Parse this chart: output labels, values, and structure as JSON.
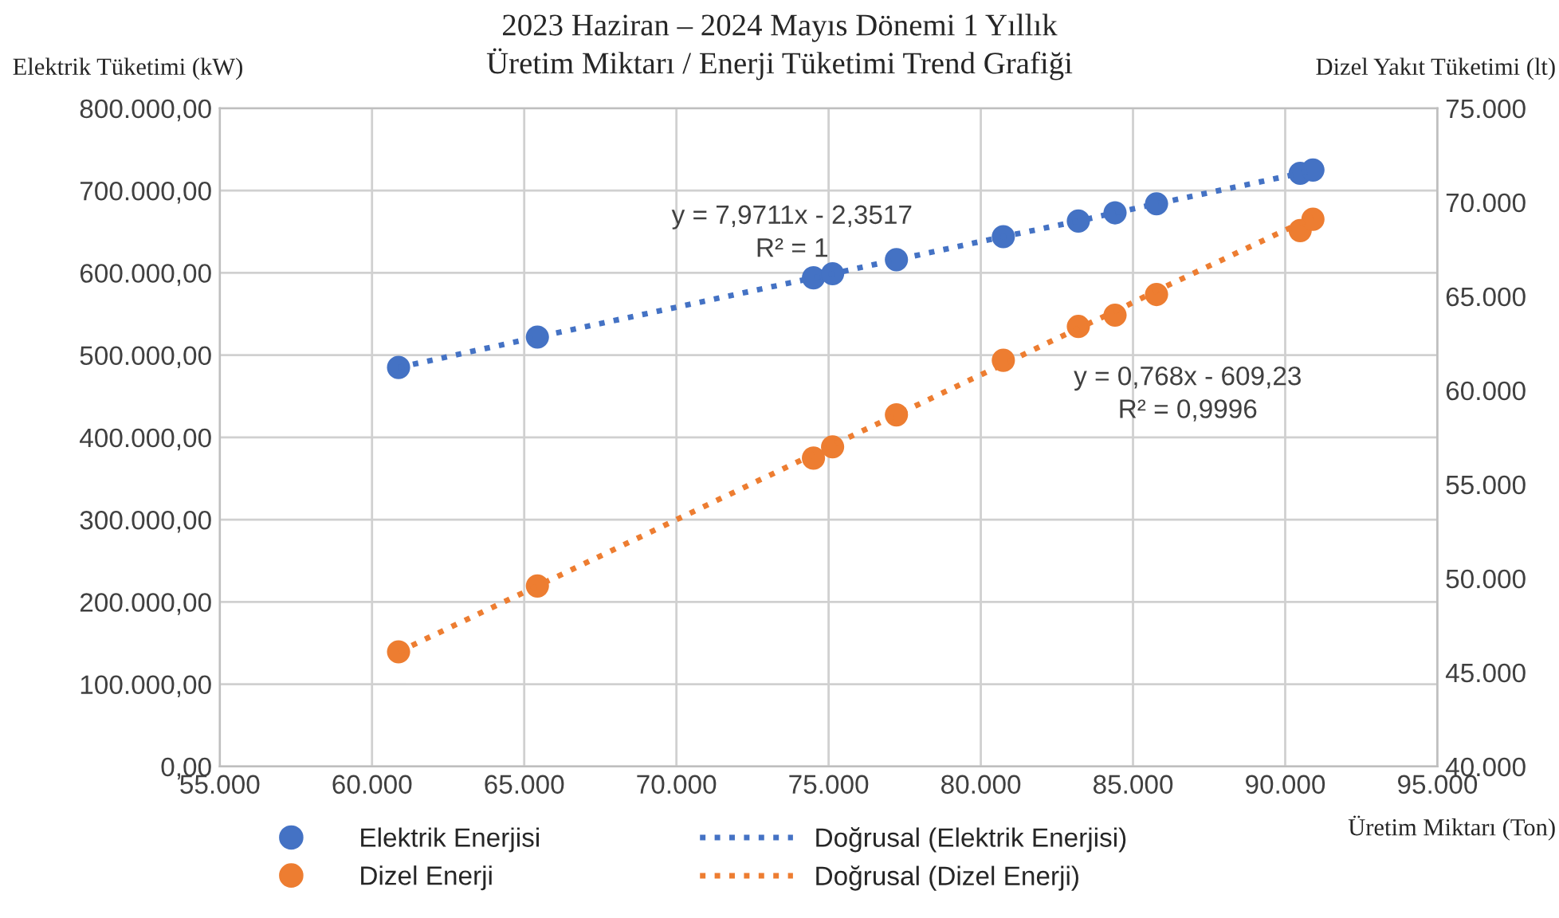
{
  "chart_data": {
    "type": "scatter",
    "title": "2023 Haziran – 2024 Mayıs Dönemi 1 Yıllık\nÜretim Miktarı / Enerji Tüketimi Trend Grafiği",
    "xlabel": "Üretim Miktarı (Ton)",
    "ylabel": "Elektrik Tüketimi (kW)",
    "y2label": "Dizel Yakıt Tüketimi (lt)",
    "x": [
      60872,
      65433,
      74502,
      75131,
      77228,
      80740,
      83205,
      84410,
      85773,
      90492,
      90911
    ],
    "series": [
      {
        "name": "Elektrik Enerjisi",
        "color": "#4472c4",
        "marker": "circle",
        "values": [
          485000,
          522000,
          594000,
          599000,
          616000,
          644000,
          663000,
          673000,
          684000,
          721000,
          725000
        ]
      },
      {
        "name": "Dizel Enerji",
        "axis": "y2",
        "color": "#ed7d31",
        "marker": "circle",
        "values": [
          46100,
          49600,
          56400,
          57000,
          58700,
          61600,
          63400,
          64000,
          65100,
          68500,
          69100
        ]
      },
      {
        "name": "Doğrusal (Elektrik Enerjisi)",
        "type": "line",
        "color": "#4472c4",
        "line_style": "dotted",
        "values": [
          485000,
          522000,
          594000,
          599000,
          616000,
          644000,
          663000,
          673000,
          684000,
          721000,
          725000
        ]
      },
      {
        "name": "Doğrusal (Dizel Enerji)",
        "type": "line",
        "axis": "y2",
        "color": "#ed7d31",
        "line_style": "dotted",
        "values": [
          46100,
          49600,
          56600,
          57100,
          58700,
          61400,
          63300,
          64200,
          65300,
          68900,
          69200
        ]
      }
    ],
    "xlim": [
      55000,
      95000
    ],
    "xticks": [
      {
        "value": 55000,
        "label": "55.000"
      },
      {
        "value": 60000,
        "label": "60.000"
      },
      {
        "value": 65000,
        "label": "65.000"
      },
      {
        "value": 70000,
        "label": "70.000"
      },
      {
        "value": 75000,
        "label": "75.000"
      },
      {
        "value": 80000,
        "label": "80.000"
      },
      {
        "value": 85000,
        "label": "85.000"
      },
      {
        "value": 90000,
        "label": "90.000"
      },
      {
        "value": 95000,
        "label": "95.000"
      }
    ],
    "ylim": [
      0,
      800000
    ],
    "yticks": [
      {
        "value": 0,
        "label": "0,00"
      },
      {
        "value": 100000,
        "label": "100.000,00"
      },
      {
        "value": 200000,
        "label": "200.000,00"
      },
      {
        "value": 300000,
        "label": "300.000,00"
      },
      {
        "value": 400000,
        "label": "400.000,00"
      },
      {
        "value": 500000,
        "label": "500.000,00"
      },
      {
        "value": 600000,
        "label": "600.000,00"
      },
      {
        "value": 700000,
        "label": "700.000,00"
      },
      {
        "value": 800000,
        "label": "800.000,00"
      }
    ],
    "y2lim": [
      40000,
      75000
    ],
    "y2ticks": [
      {
        "value": 40000,
        "label": "40.000"
      },
      {
        "value": 45000,
        "label": "45.000"
      },
      {
        "value": 50000,
        "label": "50.000"
      },
      {
        "value": 55000,
        "label": "55.000"
      },
      {
        "value": 60000,
        "label": "60.000"
      },
      {
        "value": 65000,
        "label": "65.000"
      },
      {
        "value": 70000,
        "label": "70.000"
      },
      {
        "value": 75000,
        "label": "75.000"
      }
    ],
    "annotations": [
      "y = 7,9711x - 2,3517",
      "R² = 1",
      "y = 0,768x - 609,23",
      "R² = 0,9996"
    ],
    "grid": true,
    "legend": "bottom"
  }
}
